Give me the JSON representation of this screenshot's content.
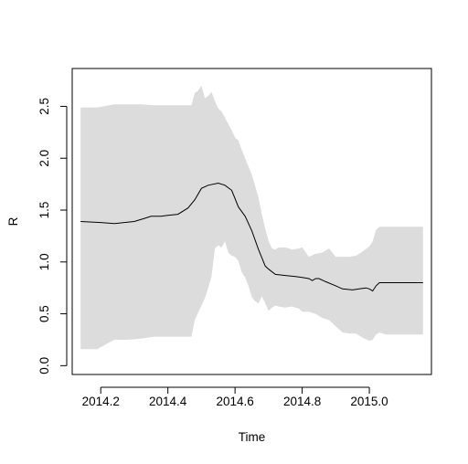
{
  "chart_data": {
    "type": "line",
    "title": "",
    "xlabel": "Time",
    "ylabel": "R",
    "xlim": [
      2014.115,
      2015.185
    ],
    "ylim": [
      -0.085,
      2.865
    ],
    "x_ticks": [
      2014.2,
      2014.4,
      2014.6,
      2014.8,
      2015.0
    ],
    "x_tick_labels": [
      "2014.2",
      "2014.4",
      "2014.6",
      "2014.8",
      "2015.0"
    ],
    "y_ticks": [
      0.0,
      0.5,
      1.0,
      1.5,
      2.0,
      2.5
    ],
    "y_tick_labels": [
      "0.0",
      "0.5",
      "1.0",
      "1.5",
      "2.0",
      "2.5"
    ],
    "grid": false,
    "colors": {
      "band": "#dcdcdc",
      "line": "#000000",
      "frame": "#000000"
    },
    "series": [
      {
        "role": "estimate",
        "x": [
          2014.14,
          2014.2,
          2014.24,
          2014.27,
          2014.3,
          2014.33,
          2014.35,
          2014.38,
          2014.4,
          2014.43,
          2014.46,
          2014.48,
          2014.5,
          2014.52,
          2014.55,
          2014.57,
          2014.59,
          2014.61,
          2014.63,
          2014.65,
          2014.67,
          2014.69,
          2014.7,
          2014.72,
          2014.75,
          2014.78,
          2014.8,
          2014.82,
          2014.83,
          2014.84,
          2014.85,
          2014.87,
          2014.9,
          2014.92,
          2014.95,
          2014.97,
          2014.99,
          2015.0,
          2015.01,
          2015.02,
          2015.03,
          2015.16
        ],
        "y": [
          1.39,
          1.38,
          1.37,
          1.38,
          1.39,
          1.42,
          1.44,
          1.44,
          1.45,
          1.46,
          1.52,
          1.6,
          1.71,
          1.74,
          1.76,
          1.74,
          1.69,
          1.53,
          1.44,
          1.3,
          1.12,
          0.96,
          0.93,
          0.88,
          0.87,
          0.86,
          0.85,
          0.84,
          0.82,
          0.84,
          0.84,
          0.81,
          0.77,
          0.74,
          0.73,
          0.74,
          0.75,
          0.74,
          0.72,
          0.77,
          0.8,
          0.8
        ]
      }
    ],
    "band": {
      "role": "confidence-interval",
      "x": [
        2014.14,
        2014.19,
        2014.24,
        2014.28,
        2014.32,
        2014.36,
        2014.4,
        2014.44,
        2014.47,
        2014.48,
        2014.49,
        2014.5,
        2014.51,
        2014.52,
        2014.53,
        2014.54,
        2014.55,
        2014.56,
        2014.57,
        2014.58,
        2014.59,
        2014.6,
        2014.61,
        2014.62,
        2014.63,
        2014.64,
        2014.65,
        2014.66,
        2014.67,
        2014.68,
        2014.69,
        2014.7,
        2014.71,
        2014.72,
        2014.73,
        2014.75,
        2014.77,
        2014.79,
        2014.8,
        2014.82,
        2014.84,
        2014.86,
        2014.88,
        2014.9,
        2014.92,
        2014.94,
        2014.96,
        2014.98,
        2015.0,
        2015.01,
        2015.02,
        2015.03,
        2015.05,
        2015.1,
        2015.16
      ],
      "upper": [
        2.49,
        2.49,
        2.52,
        2.52,
        2.52,
        2.51,
        2.51,
        2.51,
        2.51,
        2.63,
        2.65,
        2.7,
        2.58,
        2.6,
        2.64,
        2.55,
        2.48,
        2.45,
        2.39,
        2.33,
        2.27,
        2.2,
        2.17,
        2.08,
        2.0,
        1.92,
        1.84,
        1.73,
        1.62,
        1.46,
        1.32,
        1.2,
        1.13,
        1.12,
        1.14,
        1.14,
        1.12,
        1.13,
        1.14,
        1.05,
        1.08,
        1.09,
        1.13,
        1.05,
        1.05,
        1.05,
        1.06,
        1.1,
        1.15,
        1.2,
        1.31,
        1.34,
        1.34,
        1.34,
        1.34
      ],
      "lower": [
        0.16,
        0.16,
        0.25,
        0.25,
        0.26,
        0.28,
        0.28,
        0.28,
        0.28,
        0.44,
        0.51,
        0.58,
        0.65,
        0.75,
        0.86,
        1.13,
        1.16,
        1.14,
        1.2,
        1.09,
        1.06,
        1.05,
        1.01,
        0.9,
        0.85,
        0.77,
        0.66,
        0.62,
        0.6,
        0.67,
        0.6,
        0.53,
        0.56,
        0.58,
        0.57,
        0.56,
        0.57,
        0.55,
        0.52,
        0.52,
        0.5,
        0.46,
        0.44,
        0.38,
        0.32,
        0.31,
        0.31,
        0.27,
        0.24,
        0.25,
        0.3,
        0.32,
        0.3,
        0.3,
        0.3
      ]
    }
  }
}
